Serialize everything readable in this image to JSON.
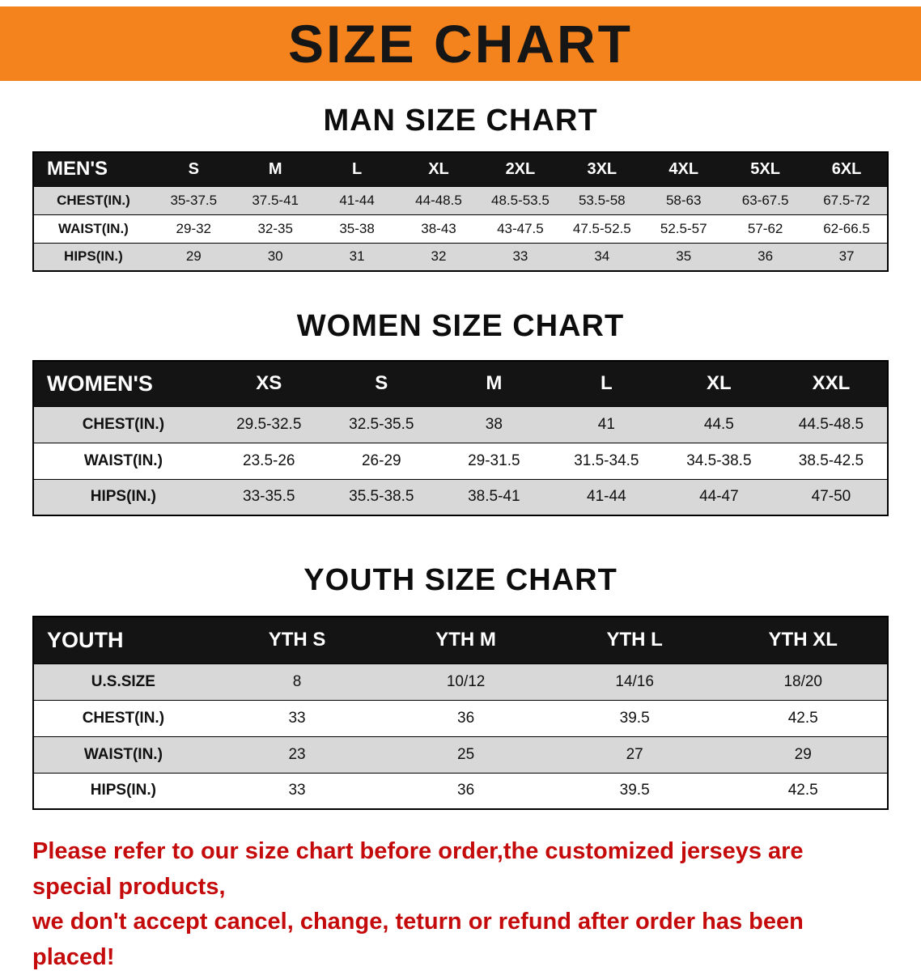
{
  "colors": {
    "banner_bg": "#F5831D",
    "header_bg": "#141414",
    "stripe_gray": "#D8D8D8",
    "disclaimer_red": "#C40A0A"
  },
  "banner": {
    "title": "SIZE CHART"
  },
  "sections": [
    {
      "heading": "MAN SIZE CHART",
      "table": {
        "header": [
          "MEN'S",
          "S",
          "M",
          "L",
          "XL",
          "2XL",
          "3XL",
          "4XL",
          "5XL",
          "6XL"
        ],
        "rows": [
          {
            "label": "CHEST(IN.)",
            "values": [
              "35-37.5",
              "37.5-41",
              "41-44",
              "44-48.5",
              "48.5-53.5",
              "53.5-58",
              "58-63",
              "63-67.5",
              "67.5-72"
            ]
          },
          {
            "label": "WAIST(IN.)",
            "values": [
              "29-32",
              "32-35",
              "35-38",
              "38-43",
              "43-47.5",
              "47.5-52.5",
              "52.5-57",
              "57-62",
              "62-66.5"
            ]
          },
          {
            "label": "HIPS(IN.)",
            "values": [
              "29",
              "30",
              "31",
              "32",
              "33",
              "34",
              "35",
              "36",
              "37"
            ]
          }
        ]
      }
    },
    {
      "heading": "WOMEN SIZE CHART",
      "table": {
        "header": [
          "WOMEN'S",
          "XS",
          "S",
          "M",
          "L",
          "XL",
          "XXL"
        ],
        "rows": [
          {
            "label": "CHEST(IN.)",
            "values": [
              "29.5-32.5",
              "32.5-35.5",
              "38",
              "41",
              "44.5",
              "44.5-48.5"
            ]
          },
          {
            "label": "WAIST(IN.)",
            "values": [
              "23.5-26",
              "26-29",
              "29-31.5",
              "31.5-34.5",
              "34.5-38.5",
              "38.5-42.5"
            ]
          },
          {
            "label": "HIPS(IN.)",
            "values": [
              "33-35.5",
              "35.5-38.5",
              "38.5-41",
              "41-44",
              "44-47",
              "47-50"
            ]
          }
        ]
      }
    },
    {
      "heading": "YOUTH SIZE CHART",
      "table": {
        "header": [
          "YOUTH",
          "YTH S",
          "YTH M",
          "YTH L",
          "YTH XL"
        ],
        "rows": [
          {
            "label": "U.S.SIZE",
            "values": [
              "8",
              "10/12",
              "14/16",
              "18/20"
            ]
          },
          {
            "label": "CHEST(IN.)",
            "values": [
              "33",
              "36",
              "39.5",
              "42.5"
            ]
          },
          {
            "label": "WAIST(IN.)",
            "values": [
              "23",
              "25",
              "27",
              "29"
            ]
          },
          {
            "label": "HIPS(IN.)",
            "values": [
              "33",
              "36",
              "39.5",
              "42.5"
            ]
          }
        ]
      }
    }
  ],
  "disclaimer": {
    "line1": "Please refer to our size chart before order,the customized jerseys are special products,",
    "line2": "we don't accept cancel, change, teturn or refund after order has been placed!"
  }
}
